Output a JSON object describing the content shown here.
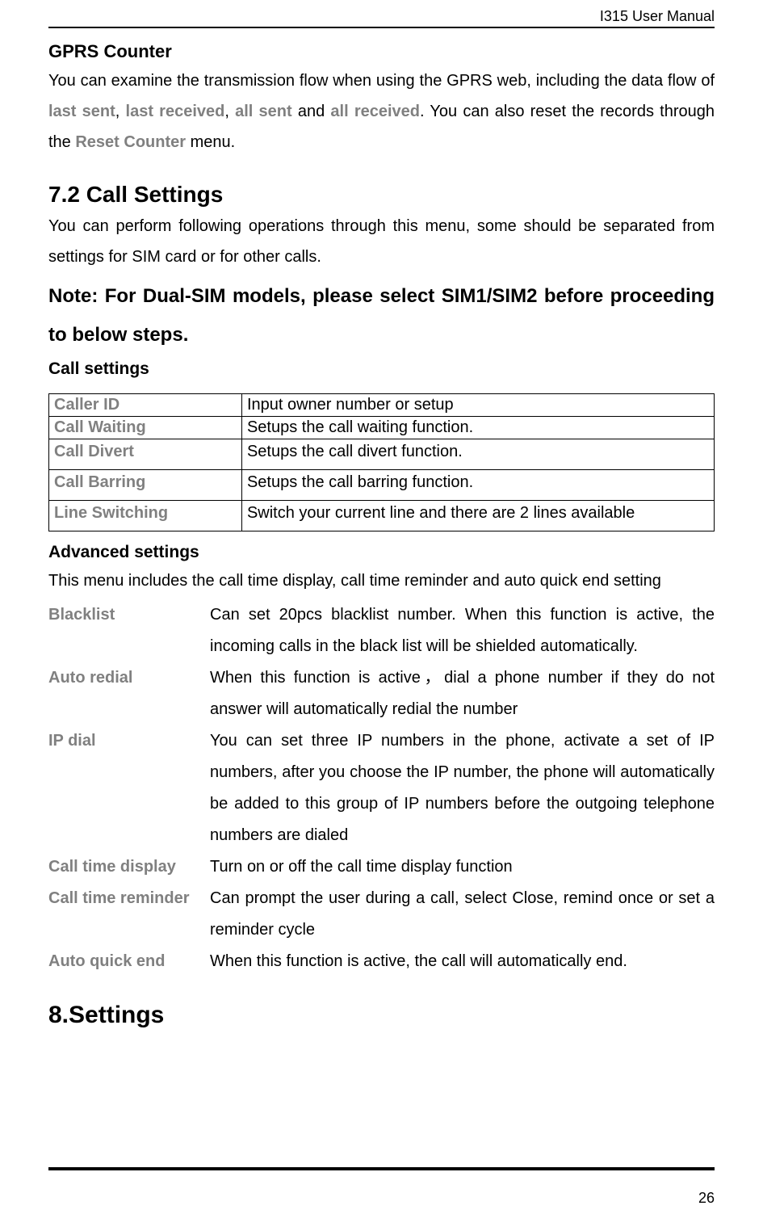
{
  "header": {
    "doc_title": "I315 User Manual"
  },
  "gprs": {
    "heading": "GPRS Counter",
    "p1_a": "You can examine the transmission flow when using the GPRS web, including the data flow of ",
    "last_sent": "last sent",
    "comma1": ", ",
    "last_received": "last received",
    "comma2": ", ",
    "all_sent": "all sent",
    "and": " and ",
    "all_received": "all received",
    "p1_b": ". You can also reset the records through the ",
    "reset_counter": "Reset Counter",
    "p1_c": " menu."
  },
  "call_settings": {
    "heading": "7.2 Call Settings",
    "intro": "You can perform following operations through this menu, some should be separated from settings for SIM card or for other calls.",
    "note": "Note: For Dual-SIM models, please select SIM1/SIM2 before proceeding to below steps.",
    "sub_heading": "Call settings",
    "table": {
      "rows": [
        {
          "label": "Caller ID",
          "desc": "Input owner number or setup",
          "tall": false
        },
        {
          "label": "Call Waiting",
          "desc": "Setups the call waiting function.",
          "tall": false
        },
        {
          "label": "Call Divert",
          "desc": "Setups the call divert function.",
          "tall": true
        },
        {
          "label": "Call Barring",
          "desc": "Setups the call barring function.",
          "tall": true
        },
        {
          "label": "Line Switching",
          "desc": "Switch your current line and there are 2 lines available",
          "tall": true
        }
      ]
    }
  },
  "advanced": {
    "heading": "Advanced settings",
    "intro": "This menu includes the call time display, call time reminder and auto quick end setting",
    "rows": [
      {
        "label": "Blacklist",
        "desc": "Can set 20pcs blacklist number. When this function is active, the incoming calls in the black list will be shielded automatically."
      },
      {
        "label": "Auto redial",
        "desc": "When this function is active，dial a phone number if they do not answer will automatically redial the number"
      },
      {
        "label": "IP dial",
        "desc": "You can set three IP numbers in the phone, activate a set of IP numbers, after you choose the IP number, the phone will automatically be added to this group of IP numbers before the outgoing telephone numbers are dialed"
      },
      {
        "label": "Call time display",
        "desc": "Turn on or off the call time display function"
      },
      {
        "label": "Call time reminder",
        "desc": "Can prompt the user during a call, select Close, remind once or set a reminder cycle"
      },
      {
        "label": "Auto quick end",
        "desc": "When this function is active, the call will automatically end."
      }
    ]
  },
  "chapter8": {
    "heading": "8.Settings"
  },
  "footer": {
    "page_number": "26"
  },
  "colors": {
    "text": "#000000",
    "gray": "#808080",
    "background": "#ffffff",
    "border": "#000000"
  }
}
